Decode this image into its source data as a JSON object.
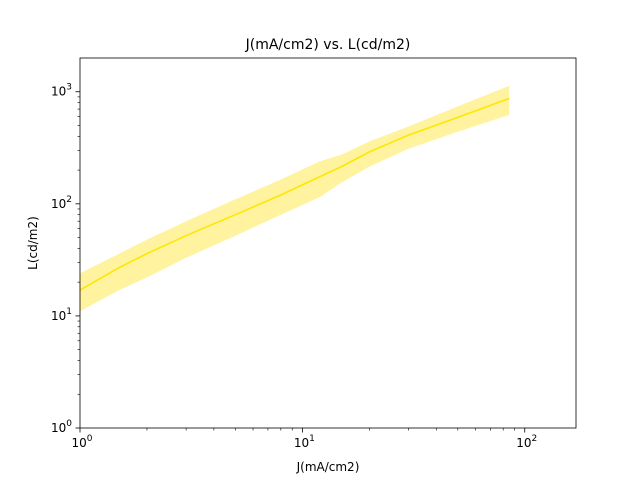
{
  "chart_data": {
    "type": "line",
    "title": "J(mA/cm2) vs. L(cd/m2)",
    "xlabel": "J(mA/cm2)",
    "ylabel": "L(cd/m2)",
    "xscale": "log",
    "yscale": "log",
    "xlim": [
      1,
      170
    ],
    "ylim": [
      1,
      2000
    ],
    "grid": false,
    "colors": {
      "line": "#ffe600",
      "band": "#fff3a0"
    },
    "x_ticks": [
      {
        "value": 1,
        "base": "10",
        "exp": "0"
      },
      {
        "value": 10,
        "base": "10",
        "exp": "1"
      },
      {
        "value": 100,
        "base": "10",
        "exp": "2"
      }
    ],
    "y_ticks": [
      {
        "value": 1,
        "base": "10",
        "exp": "0"
      },
      {
        "value": 10,
        "base": "10",
        "exp": "1"
      },
      {
        "value": 100,
        "base": "10",
        "exp": "2"
      },
      {
        "value": 1000,
        "base": "10",
        "exp": "3"
      }
    ],
    "series": [
      {
        "x": [
          1,
          1.5,
          2,
          3,
          5,
          8,
          12,
          15,
          20,
          30,
          50,
          85
        ],
        "y": [
          17,
          27,
          36,
          52,
          80,
          120,
          175,
          215,
          290,
          410,
          590,
          870
        ],
        "upper": [
          24,
          36,
          48,
          70,
          110,
          165,
          240,
          275,
          360,
          490,
          740,
          1130
        ],
        "lower": [
          11,
          17,
          22,
          33,
          52,
          80,
          115,
          155,
          215,
          310,
          440,
          620
        ]
      }
    ]
  }
}
